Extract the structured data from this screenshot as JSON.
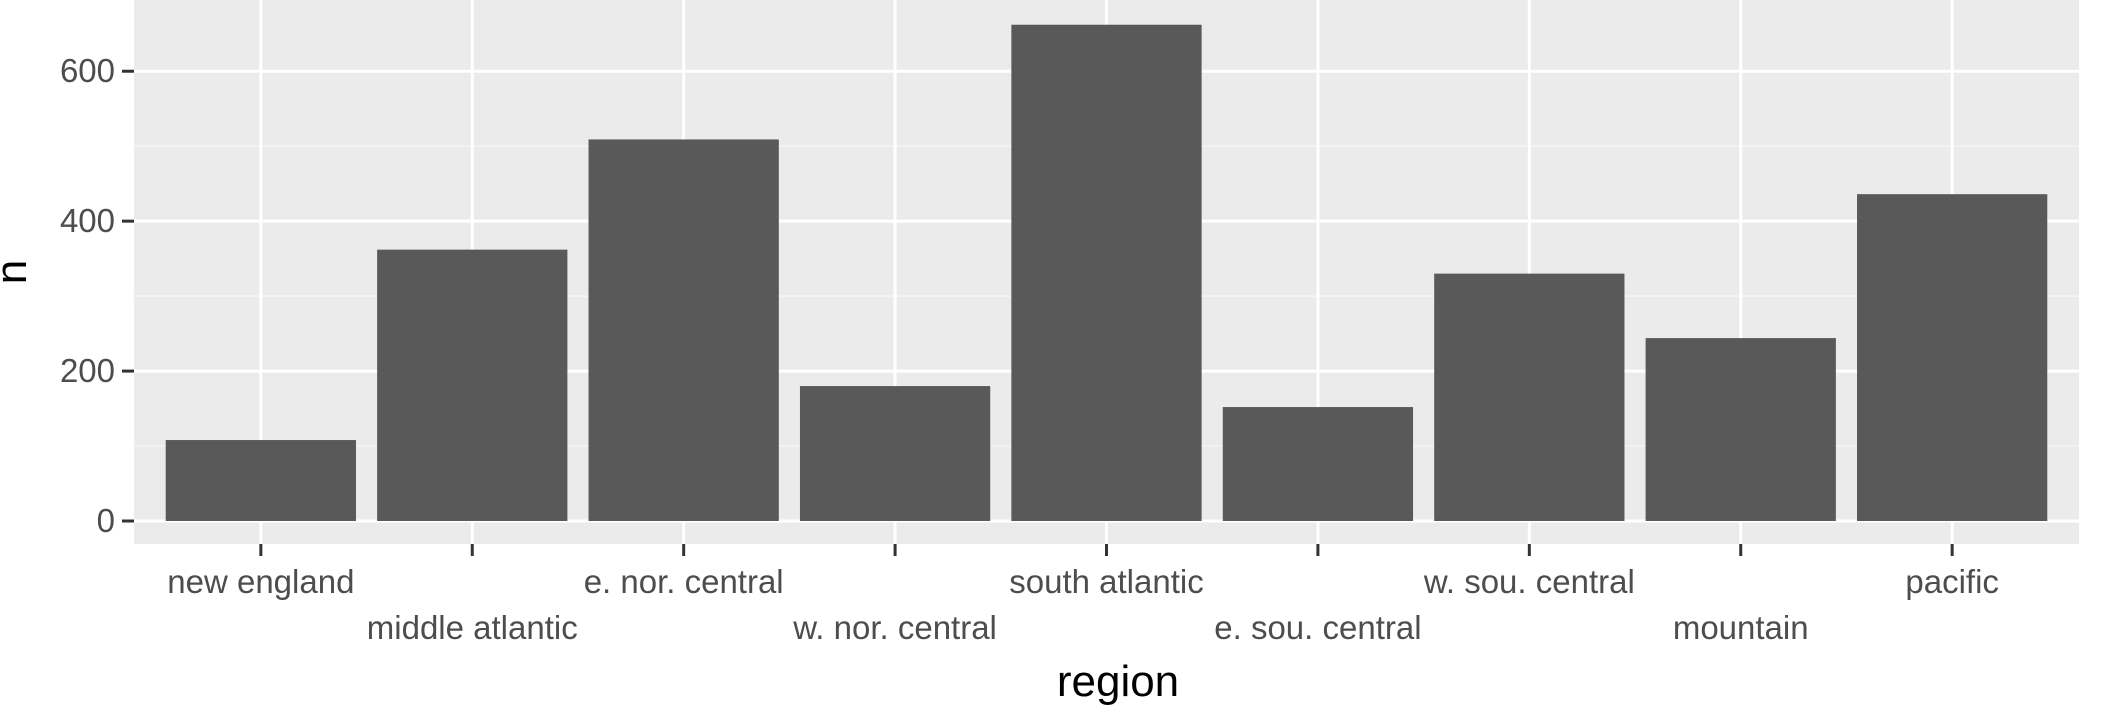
{
  "chart_data": {
    "type": "bar",
    "title": "",
    "xlabel": "region",
    "ylabel": "n",
    "categories": [
      "new england",
      "middle atlantic",
      "e. nor. central",
      "w. nor. central",
      "south atlantic",
      "e. sou. central",
      "w. sou. central",
      "mountain",
      "pacific"
    ],
    "values": [
      108,
      362,
      509,
      180,
      662,
      152,
      330,
      244,
      436
    ],
    "ylim": [
      0,
      695
    ],
    "yticks": [
      0,
      200,
      400,
      600
    ],
    "ytick_labels": [
      "0",
      "200",
      "400",
      "600"
    ],
    "grid": true,
    "legend": "none",
    "colors": {
      "bar": "#595959",
      "panel": "#ebebeb",
      "grid_major": "#ffffff",
      "grid_minor": "#f5f5f5",
      "tick": "#333333"
    }
  }
}
